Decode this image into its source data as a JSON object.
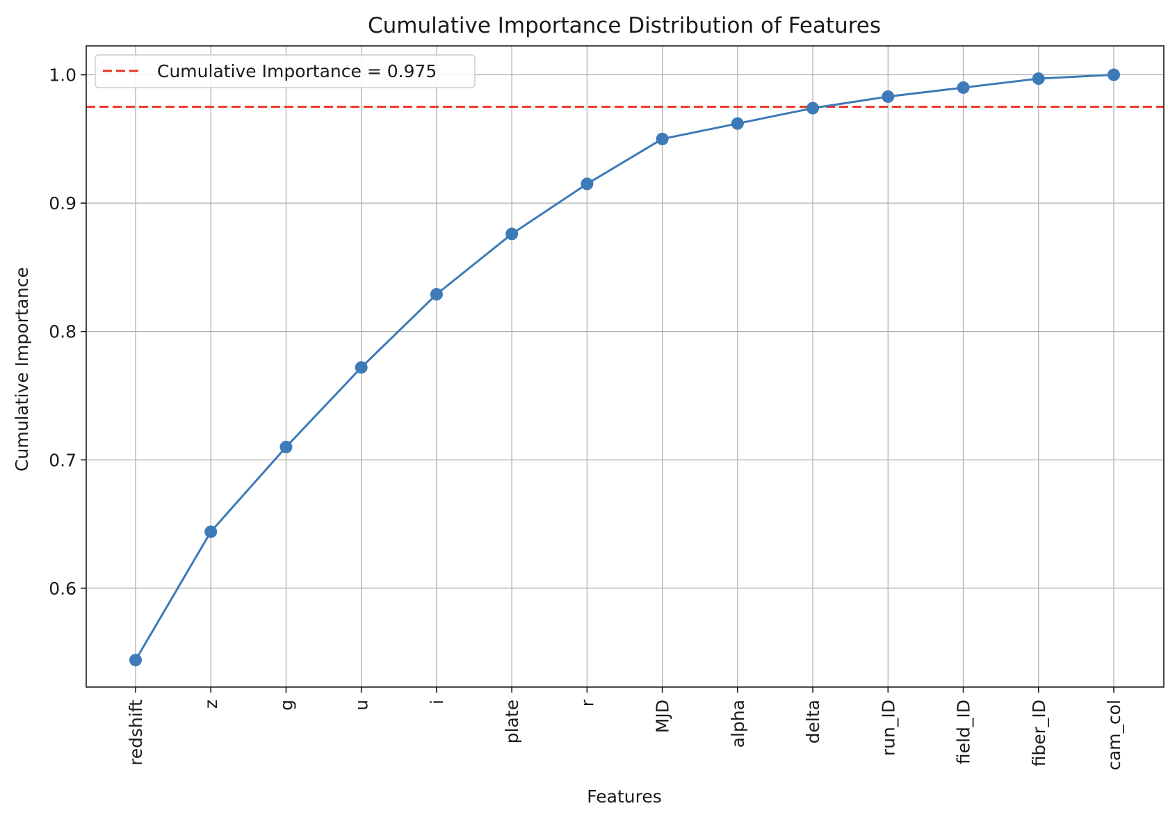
{
  "chart_data": {
    "type": "line",
    "title": "Cumulative Importance Distribution of Features",
    "xlabel": "Features",
    "ylabel": "Cumulative Importance",
    "categories": [
      "redshift",
      "z",
      "g",
      "u",
      "i",
      "plate",
      "r",
      "MJD",
      "alpha",
      "delta",
      "run_ID",
      "field_ID",
      "fiber_ID",
      "cam_col"
    ],
    "series": [
      {
        "values": [
          0.544,
          0.644,
          0.71,
          0.772,
          0.829,
          0.876,
          0.915,
          0.95,
          0.962,
          0.974,
          0.983,
          0.99,
          0.997,
          1.0
        ],
        "color": "#3d7ab8",
        "marker": "circle"
      }
    ],
    "reference_line": {
      "label": "Cumulative Importance = 0.975",
      "value": 0.975,
      "color": "#ee3322",
      "style": "dashed"
    },
    "yticks": [
      0.6,
      0.7,
      0.8,
      0.9,
      1.0
    ],
    "ytick_labels": [
      "0.6",
      "0.7",
      "0.8",
      "0.9",
      "1.0"
    ],
    "ylim": [
      0.523,
      1.0225
    ],
    "grid": true,
    "legend_position": "top-left"
  }
}
